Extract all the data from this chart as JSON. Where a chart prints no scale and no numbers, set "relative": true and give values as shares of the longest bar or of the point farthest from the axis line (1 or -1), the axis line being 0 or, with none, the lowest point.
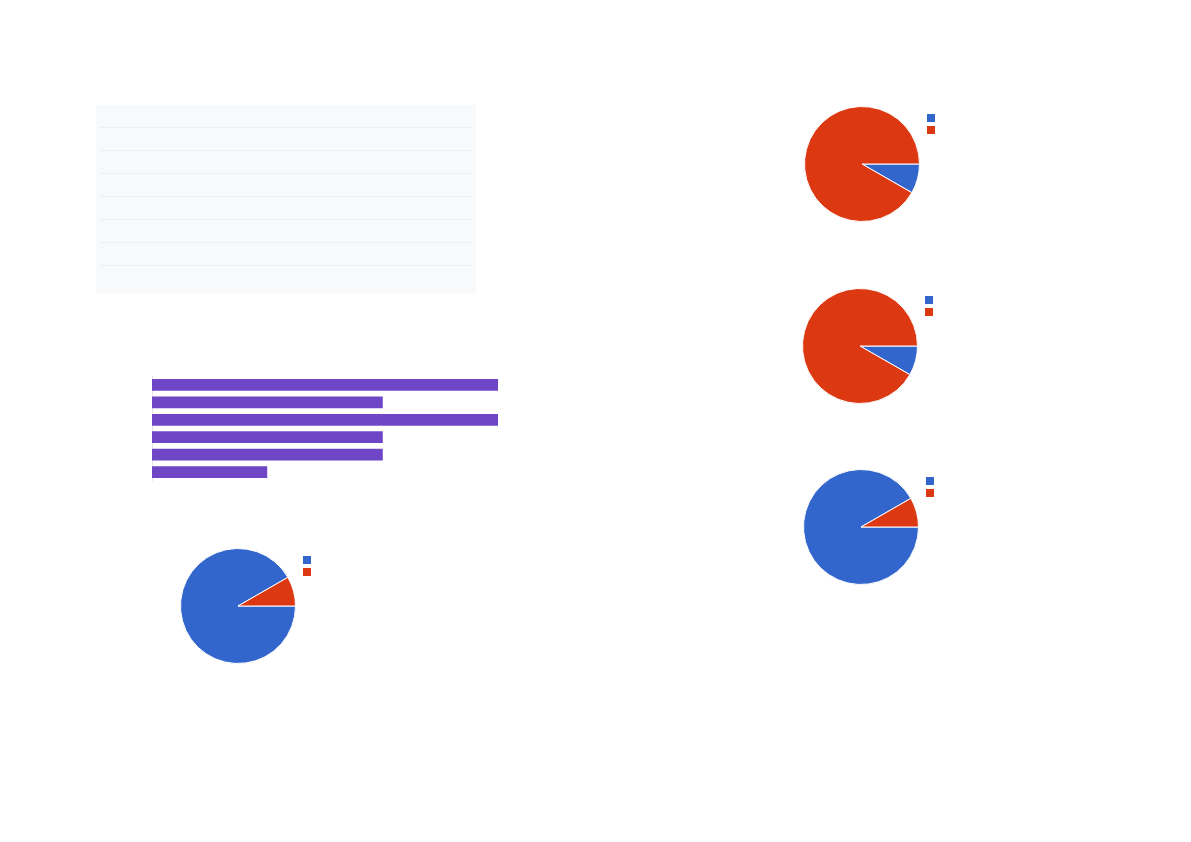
{
  "chart_data": [
    {
      "type": "bar",
      "orientation": "horizontal",
      "relative": true,
      "categories": [
        null,
        null,
        null,
        null,
        null,
        null
      ],
      "values": [
        1,
        0.667,
        1,
        0.667,
        0.667,
        0.333
      ],
      "color": "#6f47c6"
    },
    {
      "type": "pie",
      "categories": [
        null,
        null
      ],
      "values": [
        91.7,
        8.3
      ],
      "colors": [
        "#3366cc",
        "#dc3912"
      ]
    },
    {
      "type": "pie",
      "categories": [
        null,
        null
      ],
      "values": [
        8.3,
        91.7
      ],
      "colors": [
        "#3366cc",
        "#dc3912"
      ]
    },
    {
      "type": "pie",
      "categories": [
        null,
        null
      ],
      "values": [
        8.3,
        91.7
      ],
      "colors": [
        "#3366cc",
        "#dc3912"
      ]
    },
    {
      "type": "pie",
      "categories": [
        null,
        null
      ],
      "values": [
        91.7,
        8.3
      ],
      "colors": [
        "#3366cc",
        "#dc3912"
      ]
    }
  ]
}
